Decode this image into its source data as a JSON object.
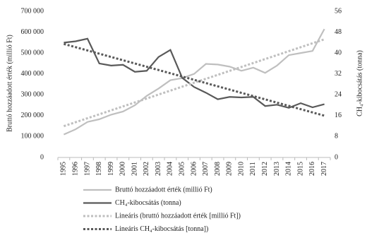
{
  "chart_data": {
    "type": "line",
    "categories": [
      "1995",
      "1996",
      "1997",
      "1998",
      "1999",
      "2000",
      "2001",
      "2002",
      "2003",
      "2004",
      "2005",
      "2006",
      "2007",
      "2008",
      "2009",
      "2010",
      "2011",
      "2012",
      "2013",
      "2014",
      "2015",
      "2016",
      "2017"
    ],
    "y_label": "Bruttó hozzáadott érték (millió Ft)",
    "y2_label": "CH₄-kibocsátás (tonna)",
    "ylim": [
      0,
      700000
    ],
    "yticks": [
      {
        "value": 0,
        "label": "0"
      },
      {
        "value": 100000,
        "label": "100 000"
      },
      {
        "value": 200000,
        "label": "200 000"
      },
      {
        "value": 300000,
        "label": "300 000"
      },
      {
        "value": 400000,
        "label": "400 000"
      },
      {
        "value": 500000,
        "label": "500 000"
      },
      {
        "value": 600000,
        "label": "600 000"
      },
      {
        "value": 700000,
        "label": "700 000"
      }
    ],
    "y2lim": [
      0,
      56
    ],
    "y2ticks": [
      0,
      8,
      16,
      24,
      32,
      40,
      48,
      56
    ],
    "series": [
      {
        "name": "Bruttó hozzáadott érték (millió Ft)",
        "color": "#bfbfbf",
        "line_style": "solid",
        "values": [
          110000,
          135000,
          170000,
          183000,
          205000,
          220000,
          250000,
          295000,
          330000,
          370000,
          380000,
          400000,
          448000,
          445000,
          435000,
          415000,
          430000,
          405000,
          440000,
          490000,
          500000,
          510000,
          615000
        ]
      },
      {
        "name": "CH₄-kibocsátás (tonna)",
        "color": "#595959",
        "line_style": "solid",
        "axis": "y2",
        "values": [
          44,
          44.5,
          45.5,
          36,
          35.2,
          35.5,
          32.8,
          33.2,
          38.5,
          41.2,
          30.5,
          27,
          24.8,
          22.3,
          23.2,
          23,
          23.2,
          19.7,
          20.2,
          19,
          20.8,
          19.2,
          20.4
        ]
      },
      {
        "name": "Lineáris (bruttó hozzáadott érték [millió Ft])",
        "color": "#bfbfbf",
        "line_style": "dotted",
        "values": [
          150000,
          168900,
          187800,
          206700,
          225600,
          244500,
          263400,
          282300,
          301200,
          320100,
          339000,
          357900,
          376800,
          395700,
          414600,
          433500,
          452400,
          471300,
          490200,
          509100,
          528000,
          546900,
          565800
        ]
      },
      {
        "name": "Lineáris CH₄-kibocsátás [tonna])",
        "color": "#595959",
        "line_style": "dotted",
        "axis": "y2",
        "values": [
          43.5,
          42.25,
          41,
          39.75,
          38.5,
          37.25,
          36,
          34.75,
          33.5,
          32.25,
          31,
          29.75,
          28.5,
          27.25,
          26,
          24.75,
          23.5,
          22.25,
          21,
          19.75,
          18.5,
          17.25,
          16
        ]
      }
    ]
  }
}
